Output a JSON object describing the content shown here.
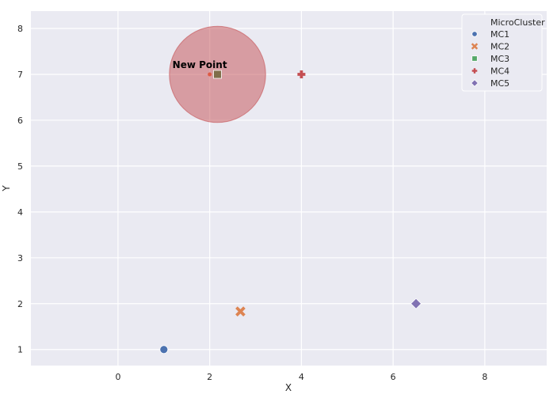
{
  "chart_data": {
    "type": "scatter",
    "xlabel": "X",
    "ylabel": "Y",
    "xlim": [
      -1.9,
      9.35
    ],
    "ylim": [
      0.65,
      8.38
    ],
    "xticks": [
      0,
      2,
      4,
      6,
      8
    ],
    "yticks": [
      1,
      2,
      3,
      4,
      5,
      6,
      7,
      8
    ],
    "grid": true,
    "legend": {
      "title": "MicroCluster",
      "placement": "top-right"
    },
    "series": [
      {
        "name": "MC1",
        "marker": "circle",
        "color": "#4c72b0",
        "points": [
          {
            "x": 1.0,
            "y": 1.0
          }
        ]
      },
      {
        "name": "MC2",
        "marker": "x",
        "color": "#dd8452",
        "points": [
          {
            "x": 2.67,
            "y": 1.83
          }
        ]
      },
      {
        "name": "MC3",
        "marker": "square",
        "color": "#55a868",
        "points": [
          {
            "x": 2.17,
            "y": 7.0
          }
        ]
      },
      {
        "name": "MC4",
        "marker": "plus",
        "color": "#c44e52",
        "points": [
          {
            "x": 4.0,
            "y": 7.0
          }
        ]
      },
      {
        "name": "MC5",
        "marker": "diamond",
        "color": "#8172b3",
        "points": [
          {
            "x": 6.5,
            "y": 2.0
          }
        ]
      }
    ],
    "circle": {
      "cx": 2.17,
      "cy": 7.0,
      "r": 1.05,
      "color": "#c44e52"
    },
    "annotation": {
      "text": "New Point",
      "x": 2.0,
      "y": 7.0
    }
  },
  "colors": {
    "plot_background": "#eaeaf2",
    "grid": "#ffffff",
    "text": "#262626"
  }
}
